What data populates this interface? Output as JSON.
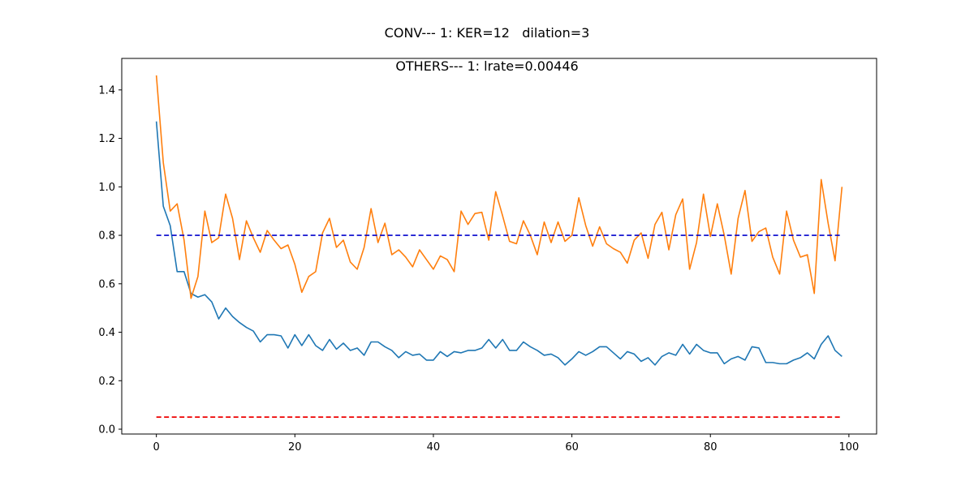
{
  "chart_data": {
    "type": "line",
    "title": "CONV--- 1: KER=12   dilation=3",
    "subtitle": "OTHERS--- 1: lrate=0.00446",
    "xlabel": "",
    "ylabel": "",
    "xlim": [
      -5,
      104
    ],
    "ylim": [
      -0.02,
      1.53
    ],
    "xticks": [
      0,
      20,
      40,
      60,
      80,
      100
    ],
    "xtick_labels": [
      "0",
      "20",
      "40",
      "60",
      "80",
      "100"
    ],
    "yticks": [
      0.0,
      0.2,
      0.4,
      0.6,
      0.8,
      1.0,
      1.2,
      1.4
    ],
    "ytick_labels": [
      "0.0",
      "0.2",
      "0.4",
      "0.6",
      "0.8",
      "1.0",
      "1.2",
      "1.4"
    ],
    "grid": false,
    "series": [
      {
        "color": "#1f77b4",
        "style": "solid",
        "x": [
          0,
          1,
          2,
          3,
          4,
          5,
          6,
          7,
          8,
          9,
          10,
          11,
          12,
          13,
          14,
          15,
          16,
          17,
          18,
          19,
          20,
          21,
          22,
          23,
          24,
          25,
          26,
          27,
          28,
          29,
          30,
          31,
          32,
          33,
          34,
          35,
          36,
          37,
          38,
          39,
          40,
          41,
          42,
          43,
          44,
          45,
          46,
          47,
          48,
          49,
          50,
          51,
          52,
          53,
          54,
          55,
          56,
          57,
          58,
          59,
          60,
          61,
          62,
          63,
          64,
          65,
          66,
          67,
          68,
          69,
          70,
          71,
          72,
          73,
          74,
          75,
          76,
          77,
          78,
          79,
          80,
          81,
          82,
          83,
          84,
          85,
          86,
          87,
          88,
          89,
          90,
          91,
          92,
          93,
          94,
          95,
          96,
          97,
          98,
          99
        ],
        "y": [
          1.27,
          0.92,
          0.84,
          0.65,
          0.65,
          0.56,
          0.545,
          0.555,
          0.525,
          0.455,
          0.5,
          0.465,
          0.44,
          0.42,
          0.405,
          0.36,
          0.39,
          0.39,
          0.385,
          0.335,
          0.39,
          0.345,
          0.39,
          0.345,
          0.325,
          0.37,
          0.33,
          0.355,
          0.325,
          0.335,
          0.305,
          0.36,
          0.36,
          0.34,
          0.325,
          0.295,
          0.32,
          0.305,
          0.31,
          0.285,
          0.285,
          0.32,
          0.3,
          0.32,
          0.315,
          0.325,
          0.325,
          0.335,
          0.37,
          0.335,
          0.37,
          0.325,
          0.325,
          0.36,
          0.34,
          0.325,
          0.305,
          0.31,
          0.295,
          0.265,
          0.29,
          0.32,
          0.305,
          0.32,
          0.34,
          0.34,
          0.315,
          0.29,
          0.32,
          0.31,
          0.28,
          0.295,
          0.265,
          0.3,
          0.315,
          0.305,
          0.35,
          0.31,
          0.35,
          0.325,
          0.315,
          0.315,
          0.27,
          0.29,
          0.3,
          0.285,
          0.34,
          0.335,
          0.275,
          0.275,
          0.27,
          0.27,
          0.285,
          0.295,
          0.315,
          0.29,
          0.35,
          0.385,
          0.325,
          0.3
        ]
      },
      {
        "color": "#ff7f0e",
        "style": "solid",
        "x": [
          0,
          1,
          2,
          3,
          4,
          5,
          6,
          7,
          8,
          9,
          10,
          11,
          12,
          13,
          14,
          15,
          16,
          17,
          18,
          19,
          20,
          21,
          22,
          23,
          24,
          25,
          26,
          27,
          28,
          29,
          30,
          31,
          32,
          33,
          34,
          35,
          36,
          37,
          38,
          39,
          40,
          41,
          42,
          43,
          44,
          45,
          46,
          47,
          48,
          49,
          50,
          51,
          52,
          53,
          54,
          55,
          56,
          57,
          58,
          59,
          60,
          61,
          62,
          63,
          64,
          65,
          66,
          67,
          68,
          69,
          70,
          71,
          72,
          73,
          74,
          75,
          76,
          77,
          78,
          79,
          80,
          81,
          82,
          83,
          84,
          85,
          86,
          87,
          88,
          89,
          90,
          91,
          92,
          93,
          94,
          95,
          96,
          97,
          98,
          99
        ],
        "y": [
          1.46,
          1.1,
          0.9,
          0.93,
          0.78,
          0.54,
          0.63,
          0.9,
          0.77,
          0.79,
          0.97,
          0.87,
          0.7,
          0.86,
          0.79,
          0.73,
          0.82,
          0.78,
          0.745,
          0.76,
          0.68,
          0.565,
          0.63,
          0.65,
          0.81,
          0.87,
          0.75,
          0.78,
          0.69,
          0.66,
          0.75,
          0.91,
          0.77,
          0.85,
          0.72,
          0.74,
          0.71,
          0.67,
          0.74,
          0.7,
          0.66,
          0.715,
          0.7,
          0.65,
          0.9,
          0.845,
          0.89,
          0.895,
          0.78,
          0.98,
          0.88,
          0.775,
          0.765,
          0.86,
          0.8,
          0.72,
          0.855,
          0.77,
          0.855,
          0.775,
          0.8,
          0.955,
          0.84,
          0.755,
          0.835,
          0.765,
          0.745,
          0.73,
          0.685,
          0.78,
          0.81,
          0.705,
          0.845,
          0.895,
          0.74,
          0.885,
          0.95,
          0.66,
          0.77,
          0.97,
          0.795,
          0.93,
          0.8,
          0.64,
          0.87,
          0.985,
          0.775,
          0.815,
          0.83,
          0.71,
          0.64,
          0.9,
          0.78,
          0.71,
          0.72,
          0.56,
          1.03,
          0.85,
          0.695,
          1.0
        ]
      },
      {
        "color": "#0000cc",
        "style": "dashed",
        "x": [
          0,
          99
        ],
        "y": [
          0.8,
          0.8
        ]
      },
      {
        "color": "#ee0000",
        "style": "dashed",
        "x": [
          0,
          99
        ],
        "y": [
          0.05,
          0.05
        ]
      }
    ]
  }
}
